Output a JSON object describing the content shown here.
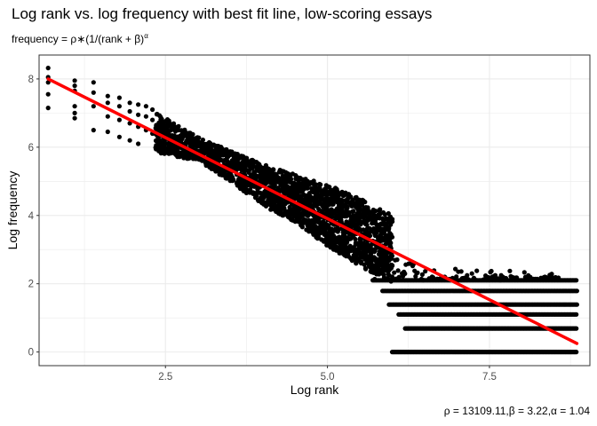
{
  "title": "Log rank vs. log frequency with best fit line, low-scoring essays",
  "subtitle": {
    "prefix": "frequency = ρ∗(1/(rank + β)",
    "exponent": "α"
  },
  "caption": "ρ = 13109.11,β = 3.22,α = 1.04",
  "colors": {
    "points": "#000000",
    "fit_line": "#ff0000",
    "grid": "#ebebeb",
    "panel_border": "#333333"
  },
  "chart_data": {
    "type": "scatter",
    "xlabel": "Log rank",
    "ylabel": "Log frequency",
    "xlim": [
      0.55,
      9.05
    ],
    "ylim": [
      -0.4,
      8.7
    ],
    "x_ticks": [
      2.5,
      5.0,
      7.5
    ],
    "x_tick_labels": [
      "2.5",
      "5.0",
      "7.5"
    ],
    "y_ticks": [
      0,
      2,
      4,
      6,
      8
    ],
    "y_tick_labels": [
      "0",
      "2",
      "4",
      "6",
      "8"
    ],
    "grid": true,
    "fit_line": {
      "x": [
        0.69,
        8.85
      ],
      "y": [
        8.0,
        0.25
      ]
    },
    "series": [
      {
        "points": [
          [
            0.69,
            8.32
          ],
          [
            0.69,
            8.05
          ],
          [
            0.69,
            7.9
          ],
          [
            0.69,
            7.55
          ],
          [
            0.69,
            7.15
          ],
          [
            1.1,
            7.95
          ],
          [
            1.1,
            7.8
          ],
          [
            1.1,
            7.65
          ],
          [
            1.1,
            7.2
          ],
          [
            1.1,
            7.0
          ],
          [
            1.1,
            6.85
          ],
          [
            1.39,
            7.9
          ],
          [
            1.39,
            7.6
          ],
          [
            1.39,
            7.2
          ],
          [
            1.39,
            6.5
          ],
          [
            1.61,
            7.5
          ],
          [
            1.61,
            7.3
          ],
          [
            1.61,
            6.9
          ],
          [
            1.61,
            6.45
          ],
          [
            1.79,
            7.45
          ],
          [
            1.79,
            7.2
          ],
          [
            1.79,
            6.8
          ],
          [
            1.79,
            6.3
          ],
          [
            1.95,
            7.3
          ],
          [
            1.95,
            7.05
          ],
          [
            1.95,
            6.7
          ],
          [
            1.95,
            6.2
          ],
          [
            2.08,
            7.25
          ],
          [
            2.08,
            6.95
          ],
          [
            2.08,
            6.6
          ],
          [
            2.08,
            6.1
          ],
          [
            2.2,
            7.2
          ],
          [
            2.2,
            6.9
          ],
          [
            2.2,
            6.5
          ],
          [
            2.3,
            7.1
          ],
          [
            2.3,
            6.8
          ],
          [
            2.3,
            6.4
          ]
        ],
        "band": {
          "x_start": 2.35,
          "x_end": 6.0,
          "upper": [
            [
              2.35,
              7.05
            ],
            [
              3.0,
              6.3
            ],
            [
              4.0,
              5.5
            ],
            [
              5.0,
              4.9
            ],
            [
              5.5,
              4.5
            ],
            [
              6.0,
              4.0
            ]
          ],
          "lower": [
            [
              2.35,
              5.85
            ],
            [
              3.0,
              5.6
            ],
            [
              3.5,
              5.0
            ],
            [
              4.0,
              4.3
            ],
            [
              4.5,
              3.8
            ],
            [
              5.0,
              3.1
            ],
            [
              5.5,
              2.5
            ],
            [
              6.0,
              2.05
            ]
          ]
        },
        "tail_levels": [
          2.1,
          1.79,
          1.39,
          1.1,
          0.69,
          0.0
        ],
        "tail_start": [
          5.7,
          5.85,
          5.95,
          6.1,
          6.2,
          6.0
        ],
        "tail_end": 8.85
      }
    ]
  }
}
